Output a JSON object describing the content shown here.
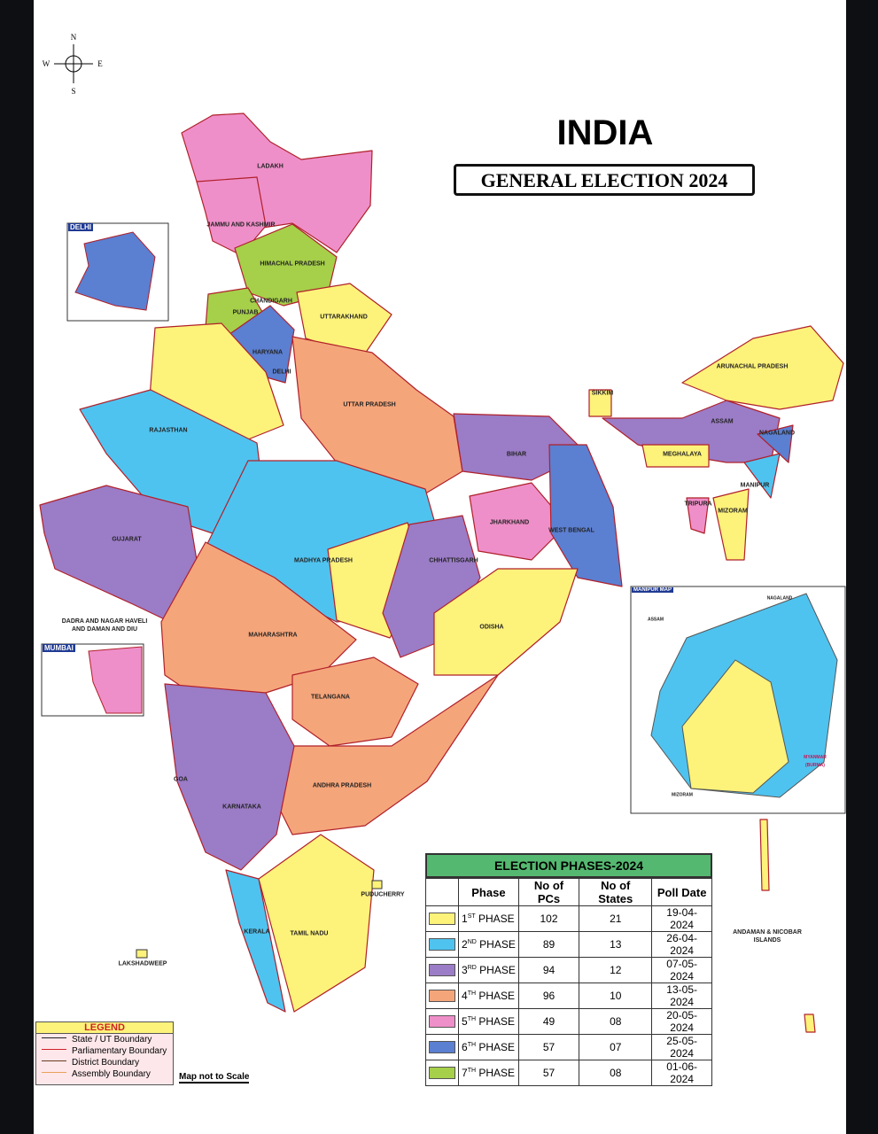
{
  "header": {
    "title": "INDIA",
    "subtitle": "GENERAL ELECTION 2024"
  },
  "compass": {
    "n": "N",
    "s": "S",
    "e": "E",
    "w": "W"
  },
  "map": {
    "labels": [
      "LADAKH",
      "JAMMU AND KASHMIR",
      "HIMACHAL PRADESH",
      "CHANDIGARH",
      "PUNJAB",
      "UTTARAKHAND",
      "HARYANA",
      "DELHI",
      "UTTAR PRADESH",
      "RAJASTHAN",
      "SIKKIM",
      "ARUNACHAL PRADESH",
      "ASSAM",
      "NAGALAND",
      "MEGHALAYA",
      "MANIPUR",
      "TRIPURA",
      "MIZORAM",
      "BIHAR",
      "JHARKHAND",
      "WEST BENGAL",
      "GUJARAT",
      "MADHYA PRADESH",
      "CHHATTISGARH",
      "DADRA AND NAGAR HAVELI AND DAMAN AND DIU",
      "ODISHA",
      "MAHARASHTRA",
      "TELANGANA",
      "ANDHRA PRADESH",
      "GOA",
      "KARNATAKA",
      "PUDUCHERRY",
      "KERALA",
      "TAMIL NADU",
      "LAKSHADWEEP",
      "ANDAMAN & NICOBAR ISLANDS"
    ]
  },
  "insets": {
    "delhi": "DELHI",
    "mumbai": "MUMBAI",
    "manipur": {
      "title": "MANIPUR MAP",
      "labels": [
        "NAGALAND",
        "ASSAM",
        "MYANMAR (BURMA)",
        "MIZORAM"
      ]
    }
  },
  "table": {
    "title": "ELECTION PHASES-2024",
    "headers": [
      "Phase",
      "No of PCs",
      "No of States",
      "Poll Date"
    ],
    "rows": [
      {
        "color": "#fdf27a",
        "num": "1",
        "sup": "ST",
        "phase": "PHASE",
        "pcs": "102",
        "states": "21",
        "date": "19-04-2024"
      },
      {
        "color": "#4fc3ef",
        "num": "2",
        "sup": "ND",
        "phase": "PHASE",
        "pcs": "89",
        "states": "13",
        "date": "26-04-2024"
      },
      {
        "color": "#9b7cc6",
        "num": "3",
        "sup": "RD",
        "phase": "PHASE",
        "pcs": "94",
        "states": "12",
        "date": "07-05-2024"
      },
      {
        "color": "#f5a57a",
        "num": "4",
        "sup": "TH",
        "phase": "PHASE",
        "pcs": "96",
        "states": "10",
        "date": "13-05-2024"
      },
      {
        "color": "#ef8fc9",
        "num": "5",
        "sup": "TH",
        "phase": "PHASE",
        "pcs": "49",
        "states": "08",
        "date": "20-05-2024"
      },
      {
        "color": "#5b7fd1",
        "num": "6",
        "sup": "TH",
        "phase": "PHASE",
        "pcs": "57",
        "states": "07",
        "date": "25-05-2024"
      },
      {
        "color": "#a6cf4a",
        "num": "7",
        "sup": "TH",
        "phase": "PHASE",
        "pcs": "57",
        "states": "08",
        "date": "01-06-2024"
      }
    ]
  },
  "legend": {
    "title": "LEGEND",
    "items": [
      {
        "label": "State / UT Boundary",
        "color": "#222"
      },
      {
        "label": "Parliamentary Boundary",
        "color": "#d0202a"
      },
      {
        "label": "District Boundary",
        "color": "#6a3d20"
      },
      {
        "label": "Assembly Boundary",
        "color": "#e8a05a"
      }
    ]
  },
  "note": "Map not to Scale"
}
